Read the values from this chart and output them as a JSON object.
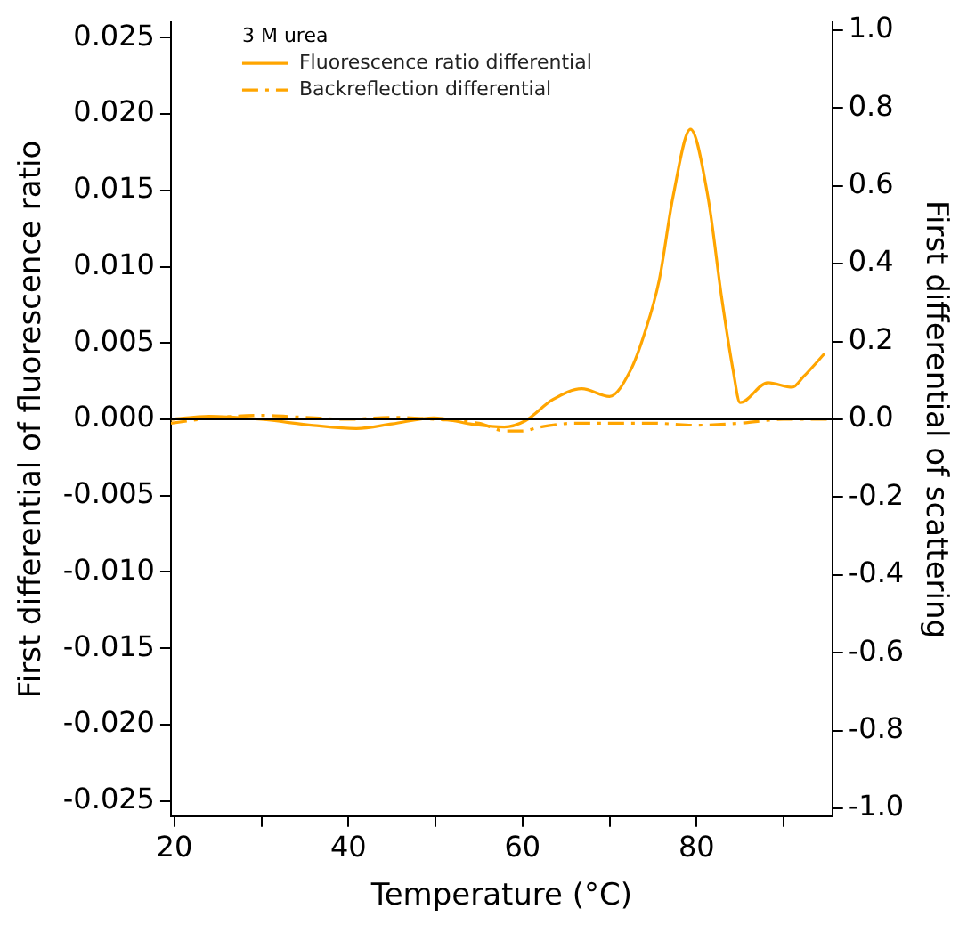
{
  "chart_data": {
    "type": "line",
    "xlabel": "Temperature (°C)",
    "ylabel": "First differential of fluorescence ratio",
    "y2label": "First differential of scattering",
    "legend_title": "3 M urea",
    "legend": "top",
    "grid": false,
    "marker": "none",
    "xlim": [
      19.6,
      95.6
    ],
    "xticks": [
      20,
      {
        "value": 30,
        "label": null
      },
      40,
      {
        "value": 50,
        "label": null
      },
      60,
      {
        "value": 70,
        "label": null
      },
      80,
      {
        "value": 90,
        "label": null
      }
    ],
    "ylim": [
      -0.026,
      0.026
    ],
    "yticks": [
      -0.025,
      {
        "value": -0.02,
        "label": "-0.020"
      },
      -0.015,
      {
        "value": -0.01,
        "label": "-0.010"
      },
      -0.005,
      {
        "value": 0,
        "label": "0.000"
      },
      0.005,
      {
        "value": 0.01,
        "label": "0.010"
      },
      0.015,
      {
        "value": 0.02,
        "label": "0.020"
      },
      0.025
    ],
    "y2lim": [
      -1.02,
      1.02
    ],
    "y2ticks": [
      {
        "value": -1,
        "label": "-1.0"
      },
      -0.8,
      -0.6,
      -0.4,
      -0.2,
      {
        "value": 0,
        "label": "0.0"
      },
      0.2,
      0.4,
      0.6,
      0.8,
      {
        "value": 1,
        "label": "1.0"
      }
    ],
    "ref_lines": [
      {
        "axis": "y",
        "value": 0,
        "color": "#000000"
      }
    ],
    "series": [
      {
        "name": "Fluorescence ratio differential",
        "color": "#ffa500",
        "line_style": "solid",
        "x": [
          19.6,
          24,
          30,
          36,
          40.9,
          45,
          49.8,
          54,
          57.9,
          60.3,
          63.5,
          66.8,
          70,
          72.4,
          74,
          75.7,
          77.3,
          79.3,
          81.3,
          82.9,
          84.2,
          85,
          88.2,
          91,
          92.3,
          94.7
        ],
        "values": [
          0,
          0.0002,
          0,
          -0.0004,
          -0.0006,
          -0.0003,
          0.0001,
          -0.0003,
          -0.0005,
          -0.0001,
          0.0013,
          0.002,
          0.0015,
          0.0032,
          0.0056,
          0.0091,
          0.0146,
          0.019,
          0.0146,
          0.0079,
          0.0032,
          0.0011,
          0.0024,
          0.0021,
          0.0028,
          0.0043
        ]
      },
      {
        "name": "Backreflection differential",
        "color": "#ffa500",
        "line_style": "dashed",
        "axis": "y2",
        "x": [
          19.6,
          25,
          30,
          35,
          40,
          45,
          50,
          55,
          58,
          60,
          62,
          66,
          70,
          75,
          80,
          85,
          90,
          95.6
        ],
        "values": [
          -0.01,
          0.005,
          0.01,
          0.005,
          0,
          0.005,
          0,
          -0.01,
          -0.03,
          -0.03,
          -0.02,
          -0.01,
          -0.01,
          -0.01,
          -0.015,
          -0.01,
          0,
          0
        ]
      }
    ]
  }
}
